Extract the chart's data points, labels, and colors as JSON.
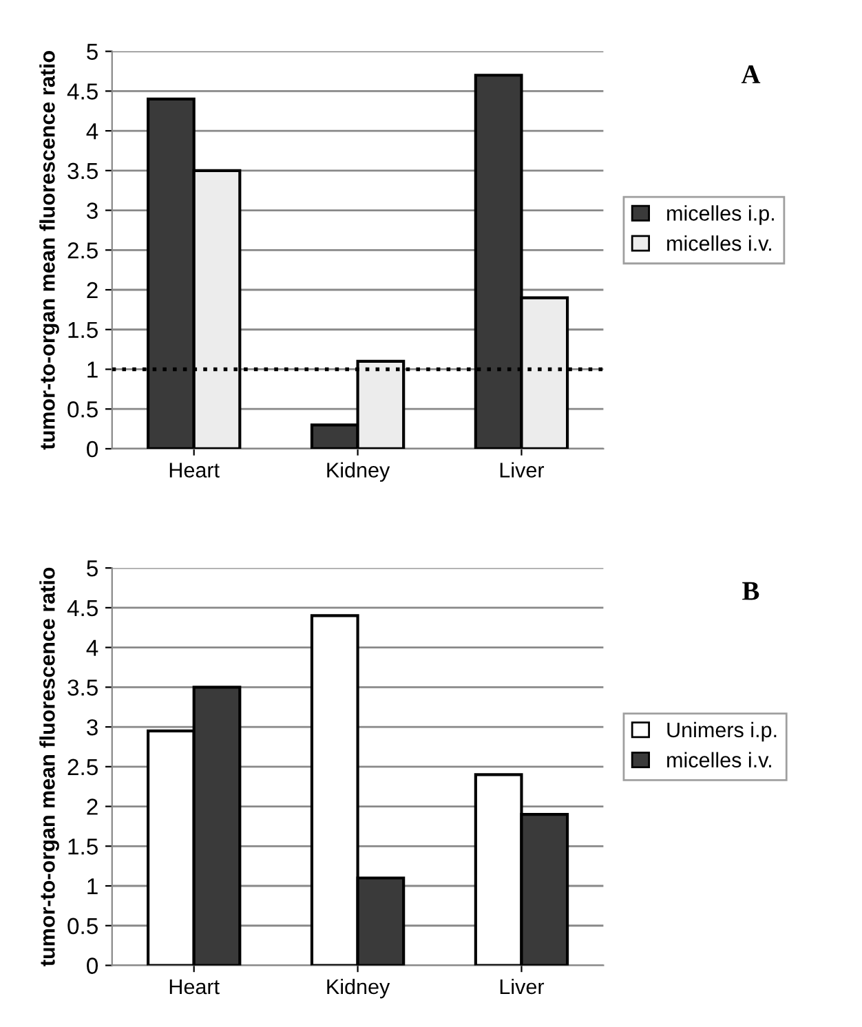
{
  "chart_data": [
    {
      "type": "bar",
      "ylabel": "tumor-to-organ mean fluorescence ratio",
      "annotations": [
        "A"
      ],
      "categories": [
        "Heart",
        "Kidney",
        "Liver"
      ],
      "series": [
        {
          "name": "micelles i.p.",
          "color": "#3a3a3a",
          "values": [
            4.4,
            0.3,
            4.7
          ]
        },
        {
          "name": "micelles i.v.",
          "color": "#ececec",
          "values": [
            3.5,
            1.1,
            1.9
          ]
        }
      ],
      "ylim": [
        0,
        5
      ],
      "yticks": [
        0,
        0.5,
        1,
        1.5,
        2,
        2.5,
        3,
        3.5,
        4,
        4.5,
        5
      ],
      "grid": "y",
      "legend": "right",
      "ref_lines": [
        {
          "axis": "y",
          "value": 1,
          "color": "#000000",
          "line_style": "dotted"
        }
      ]
    },
    {
      "type": "bar",
      "ylabel": "tumor-to-organ mean fluorescence ratio",
      "annotations": [
        "B"
      ],
      "categories": [
        "Heart",
        "Kidney",
        "Liver"
      ],
      "series": [
        {
          "name": "Unimers i.p.",
          "color": "#ffffff",
          "values": [
            2.95,
            4.4,
            2.4
          ]
        },
        {
          "name": "micelles i.v.",
          "color": "#3a3a3a",
          "values": [
            3.5,
            1.1,
            1.9
          ]
        }
      ],
      "ylim": [
        0,
        5
      ],
      "yticks": [
        0,
        0.5,
        1,
        1.5,
        2,
        2.5,
        3,
        3.5,
        4,
        4.5,
        5
      ],
      "grid": "y",
      "legend": "right"
    }
  ]
}
